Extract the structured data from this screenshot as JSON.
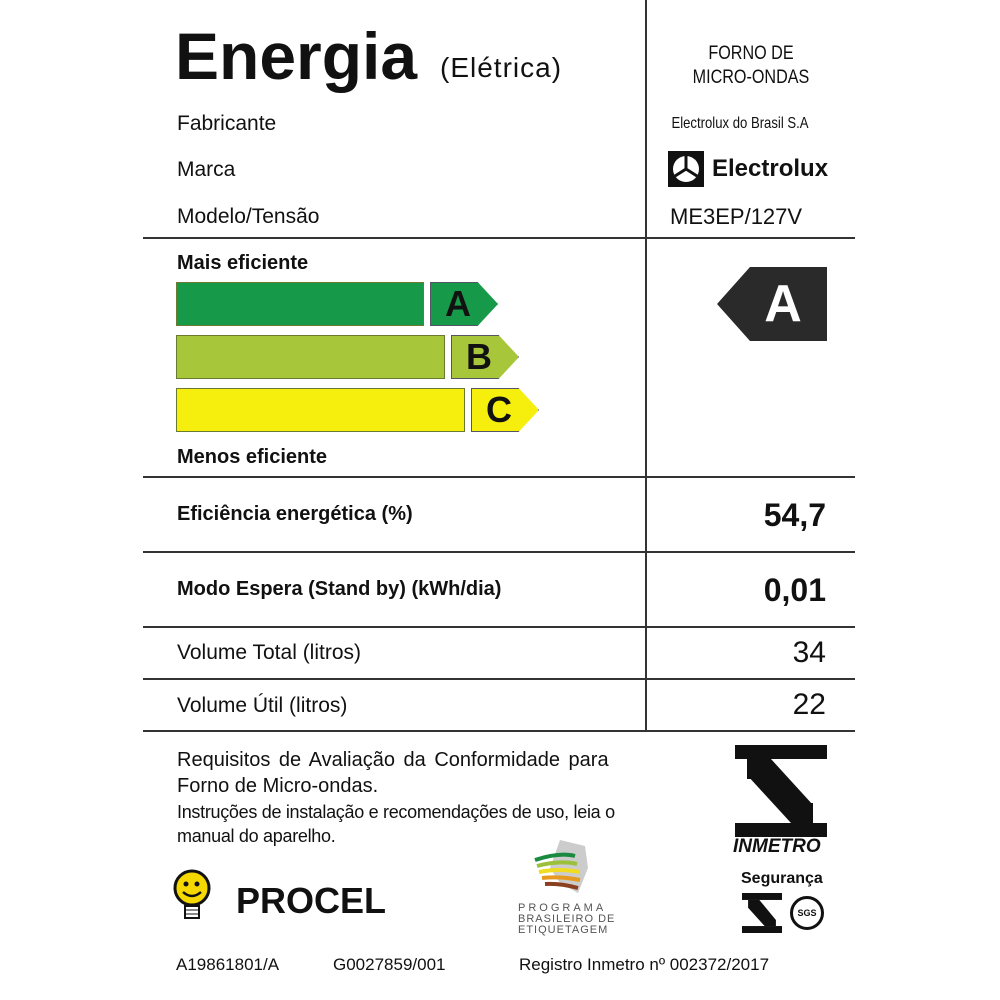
{
  "header": {
    "title": "Energia",
    "subtitle": "(Elétrica)",
    "product": [
      "FORNO DE",
      "MICRO-ONDAS"
    ]
  },
  "info": [
    {
      "label": "Fabricante",
      "value": "Electrolux do Brasil S.A"
    },
    {
      "label": "Marca",
      "value": "Electrolux"
    },
    {
      "label": "Modelo/Tensão",
      "value": "ME3EP/127V"
    }
  ],
  "scale": {
    "top_label": "Mais eficiente",
    "bottom_label": "Menos eficiente",
    "classes": [
      {
        "letter": "A",
        "color": "#17994a"
      },
      {
        "letter": "B",
        "color": "#a7c63a"
      },
      {
        "letter": "C",
        "color": "#f6ee0c"
      }
    ],
    "rating": "A"
  },
  "rows": [
    {
      "label": "Eficiência energética (%)",
      "value": "54,7",
      "bold": true
    },
    {
      "label": "Modo Espera (Stand by) (kWh/dia)",
      "value": "0,01",
      "bold": true
    },
    {
      "label": "Volume Total (litros)",
      "value": "34",
      "bold": false
    },
    {
      "label": "Volume Útil (litros)",
      "value": "22",
      "bold": false
    }
  ],
  "footer": {
    "req1": "Requisitos de Avaliação da Conformidade para",
    "req2": "Forno de Micro-ondas.",
    "instr1": "Instruções de instalação e recomendações de uso, leia o",
    "instr2": "manual do aparelho.",
    "procel": "PROCEL",
    "pbe": [
      "PROGRAMA",
      "BRASILEIRO DE",
      "ETIQUETAGEM"
    ],
    "inmetro": "INMETRO",
    "seguranca": "Segurança",
    "sgs": "SGS",
    "code1": "A19861801/A",
    "code2": "G0027859/001",
    "registro": "Registro Inmetro nº 002372/2017"
  }
}
